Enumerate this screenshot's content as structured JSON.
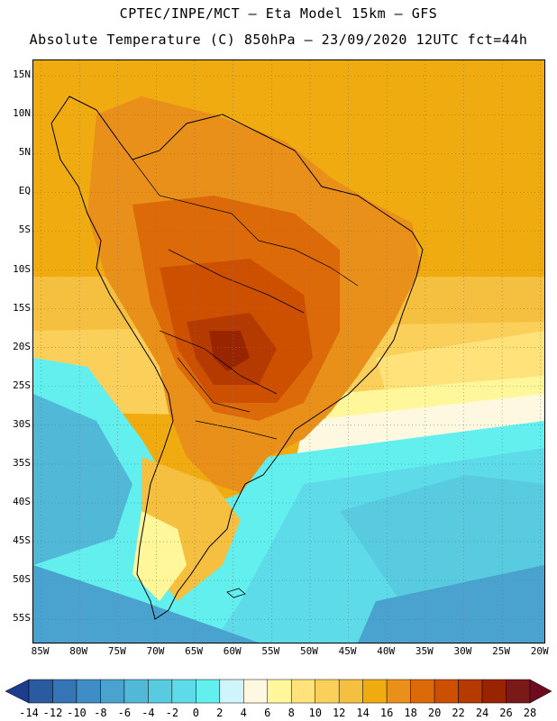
{
  "header": {
    "line1": "CPTEC/INPE/MCT –  Eta Model 15km – GFS",
    "line2": "Absolute Temperature (C) 850hPa – 23/09/2020 12UTC fct=44h"
  },
  "map": {
    "lon_min": -86,
    "lon_max": -19.5,
    "lat_min": -58,
    "lat_max": 17,
    "lat_ticks": [
      {
        "lat": 15,
        "label": "15N"
      },
      {
        "lat": 10,
        "label": "10N"
      },
      {
        "lat": 5,
        "label": "5N"
      },
      {
        "lat": 0,
        "label": "EQ"
      },
      {
        "lat": -5,
        "label": "5S"
      },
      {
        "lat": -10,
        "label": "10S"
      },
      {
        "lat": -15,
        "label": "15S"
      },
      {
        "lat": -20,
        "label": "20S"
      },
      {
        "lat": -25,
        "label": "25S"
      },
      {
        "lat": -30,
        "label": "30S"
      },
      {
        "lat": -35,
        "label": "35S"
      },
      {
        "lat": -40,
        "label": "40S"
      },
      {
        "lat": -45,
        "label": "45S"
      },
      {
        "lat": -50,
        "label": "50S"
      },
      {
        "lat": -55,
        "label": "55S"
      }
    ],
    "lon_ticks": [
      {
        "lon": -85,
        "label": "85W"
      },
      {
        "lon": -80,
        "label": "80W"
      },
      {
        "lon": -75,
        "label": "75W"
      },
      {
        "lon": -70,
        "label": "70W"
      },
      {
        "lon": -65,
        "label": "65W"
      },
      {
        "lon": -60,
        "label": "60W"
      },
      {
        "lon": -55,
        "label": "55W"
      },
      {
        "lon": -50,
        "label": "50W"
      },
      {
        "lon": -45,
        "label": "45W"
      },
      {
        "lon": -40,
        "label": "40W"
      },
      {
        "lon": -35,
        "label": "35W"
      },
      {
        "lon": -30,
        "label": "30W"
      },
      {
        "lon": -25,
        "label": "25W"
      },
      {
        "lon": -20,
        "label": "20W"
      }
    ]
  },
  "colorbar": {
    "labels": [
      "-14",
      "-12",
      "-10",
      "-8",
      "-6",
      "-4",
      "-2",
      "0",
      "2",
      "4",
      "6",
      "8",
      "10",
      "12",
      "14",
      "16",
      "18",
      "20",
      "22",
      "24",
      "26",
      "28"
    ],
    "colors": [
      "#1f3c8c",
      "#2a5aa0",
      "#3575b5",
      "#3e8dc4",
      "#4aa3cf",
      "#52b8d8",
      "#58cbe0",
      "#5edbe8",
      "#64efef",
      "#cff5fb",
      "#fff8e0",
      "#fff79a",
      "#ffe27a",
      "#fbd05a",
      "#f5c040",
      "#f0ab10",
      "#e8901a",
      "#dd6a08",
      "#cc5000",
      "#b53a00",
      "#992400",
      "#7a1a18",
      "#6e0a1e"
    ]
  }
}
